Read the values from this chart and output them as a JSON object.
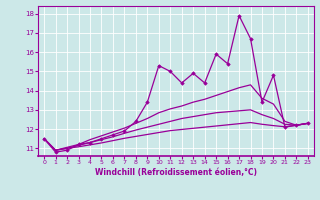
{
  "xlabel": "Windchill (Refroidissement éolien,°C)",
  "bg_color": "#cce8e8",
  "line_color": "#990099",
  "xlim": [
    -0.5,
    23.5
  ],
  "ylim": [
    10.6,
    18.4
  ],
  "yticks": [
    11,
    12,
    13,
    14,
    15,
    16,
    17,
    18
  ],
  "xticks": [
    0,
    1,
    2,
    3,
    4,
    5,
    6,
    7,
    8,
    9,
    10,
    11,
    12,
    13,
    14,
    15,
    16,
    17,
    18,
    19,
    20,
    21,
    22,
    23
  ],
  "series_main": [
    11.5,
    10.8,
    10.9,
    11.2,
    11.3,
    11.5,
    11.7,
    11.9,
    12.4,
    13.4,
    15.3,
    15.0,
    14.4,
    14.9,
    14.4,
    15.9,
    15.4,
    17.9,
    16.7,
    13.4,
    14.8,
    12.1,
    12.2,
    12.3
  ],
  "series_smooth1": [
    11.5,
    10.9,
    11.05,
    11.2,
    11.45,
    11.65,
    11.85,
    12.05,
    12.3,
    12.55,
    12.85,
    13.05,
    13.2,
    13.4,
    13.55,
    13.75,
    13.95,
    14.15,
    14.3,
    13.6,
    13.3,
    12.4,
    12.2,
    12.3
  ],
  "series_smooth2": [
    11.5,
    10.9,
    11.0,
    11.15,
    11.3,
    11.45,
    11.6,
    11.78,
    11.95,
    12.1,
    12.25,
    12.4,
    12.55,
    12.65,
    12.75,
    12.85,
    12.9,
    12.95,
    13.0,
    12.75,
    12.55,
    12.25,
    12.2,
    12.3
  ],
  "series_smooth3": [
    11.5,
    10.9,
    11.0,
    11.08,
    11.18,
    11.28,
    11.4,
    11.52,
    11.62,
    11.72,
    11.82,
    11.92,
    11.98,
    12.04,
    12.1,
    12.16,
    12.22,
    12.28,
    12.34,
    12.25,
    12.18,
    12.12,
    12.2,
    12.3
  ]
}
